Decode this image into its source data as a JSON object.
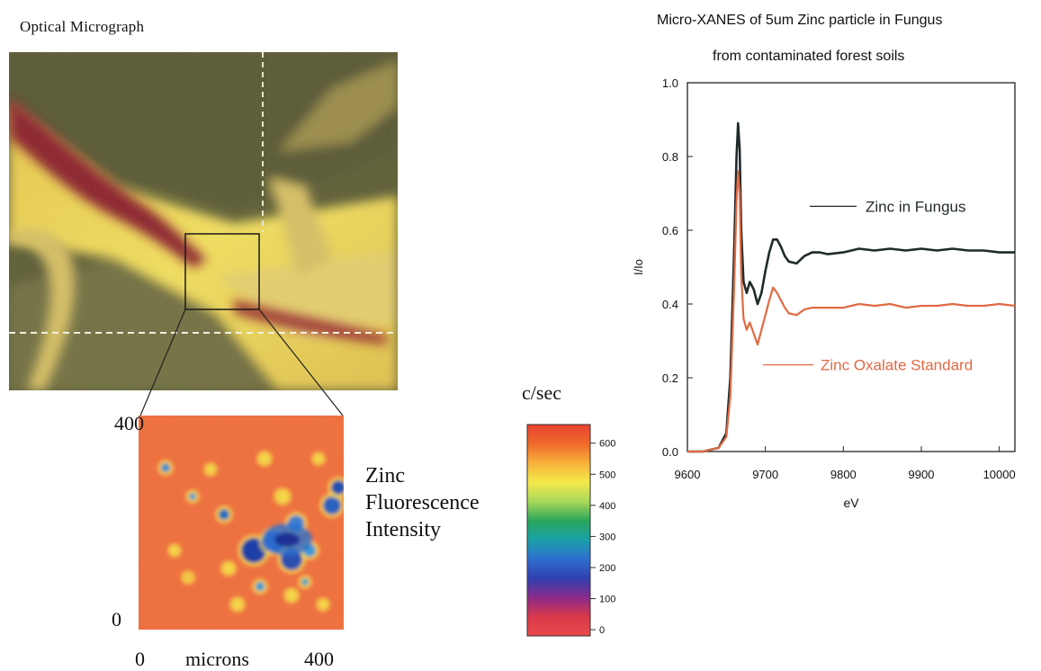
{
  "micrograph": {
    "title": "Optical   Micrograph"
  },
  "map": {
    "y_ticks": [
      "400",
      "0"
    ],
    "x_ticks": [
      "0",
      "400"
    ],
    "x_label": "microns",
    "caption": [
      "Zinc",
      "Fluorescence",
      "Intensity"
    ]
  },
  "colorbar": {
    "title": "c/sec",
    "ticks": [
      "600",
      "500",
      "400",
      "300",
      "200",
      "100",
      "0"
    ],
    "tick_values": [
      600,
      500,
      400,
      300,
      200,
      100,
      0
    ],
    "range": [
      -20,
      660
    ],
    "colors": [
      "#e8412f",
      "#f06a2a",
      "#f7b13a",
      "#f4e94a",
      "#a9d85a",
      "#2aa65a",
      "#1aa0a8",
      "#2f6fd0",
      "#3040b0",
      "#8a2a8a",
      "#d8384a",
      "#e84a4a"
    ]
  },
  "chart_data": {
    "type": "line",
    "title": "Micro-XANES of 5um Zinc particle in Fungus",
    "subtitle": "from contaminated forest soils",
    "xlabel": "eV",
    "ylabel": "I/Io",
    "xlim": [
      9600,
      10020
    ],
    "ylim": [
      0,
      1.0
    ],
    "x_ticks": [
      9600,
      9700,
      9800,
      9900,
      10000
    ],
    "y_ticks": [
      0.0,
      0.2,
      0.4,
      0.6,
      0.8,
      1.0
    ],
    "x_tick_labels": [
      "9600",
      "9700",
      "9800",
      "9900",
      "10000"
    ],
    "y_tick_labels": [
      "0.0",
      "0.2",
      "0.4",
      "0.6",
      "0.8",
      "1.0"
    ],
    "grid": false,
    "series": [
      {
        "name": "Zinc in Fungus",
        "color": "#1f2a2a",
        "x": [
          9600,
          9620,
          9640,
          9650,
          9655,
          9660,
          9663,
          9665,
          9667,
          9669,
          9672,
          9676,
          9680,
          9685,
          9690,
          9695,
          9700,
          9705,
          9710,
          9715,
          9720,
          9725,
          9730,
          9740,
          9750,
          9760,
          9770,
          9780,
          9800,
          9820,
          9840,
          9860,
          9880,
          9900,
          9920,
          9940,
          9960,
          9980,
          10000,
          10020
        ],
        "y": [
          0.0,
          0.0,
          0.01,
          0.05,
          0.2,
          0.55,
          0.8,
          0.89,
          0.82,
          0.6,
          0.46,
          0.43,
          0.46,
          0.44,
          0.4,
          0.43,
          0.49,
          0.54,
          0.575,
          0.575,
          0.555,
          0.53,
          0.515,
          0.51,
          0.53,
          0.54,
          0.54,
          0.535,
          0.54,
          0.55,
          0.545,
          0.55,
          0.545,
          0.55,
          0.545,
          0.55,
          0.545,
          0.545,
          0.54,
          0.54
        ]
      },
      {
        "name": "Zinc Oxalate Standard",
        "color": "#e06a44",
        "x": [
          9600,
          9620,
          9640,
          9650,
          9655,
          9660,
          9663,
          9665,
          9667,
          9669,
          9672,
          9676,
          9680,
          9685,
          9690,
          9695,
          9700,
          9705,
          9710,
          9715,
          9720,
          9725,
          9730,
          9740,
          9750,
          9760,
          9770,
          9780,
          9800,
          9820,
          9840,
          9860,
          9880,
          9900,
          9920,
          9940,
          9960,
          9980,
          10000,
          10020
        ],
        "y": [
          0.0,
          0.0,
          0.01,
          0.04,
          0.15,
          0.45,
          0.68,
          0.76,
          0.7,
          0.48,
          0.36,
          0.33,
          0.35,
          0.32,
          0.29,
          0.33,
          0.37,
          0.41,
          0.445,
          0.43,
          0.41,
          0.39,
          0.375,
          0.37,
          0.385,
          0.39,
          0.39,
          0.39,
          0.39,
          0.4,
          0.395,
          0.4,
          0.39,
          0.395,
          0.395,
          0.4,
          0.395,
          0.395,
          0.4,
          0.395
        ]
      }
    ]
  }
}
